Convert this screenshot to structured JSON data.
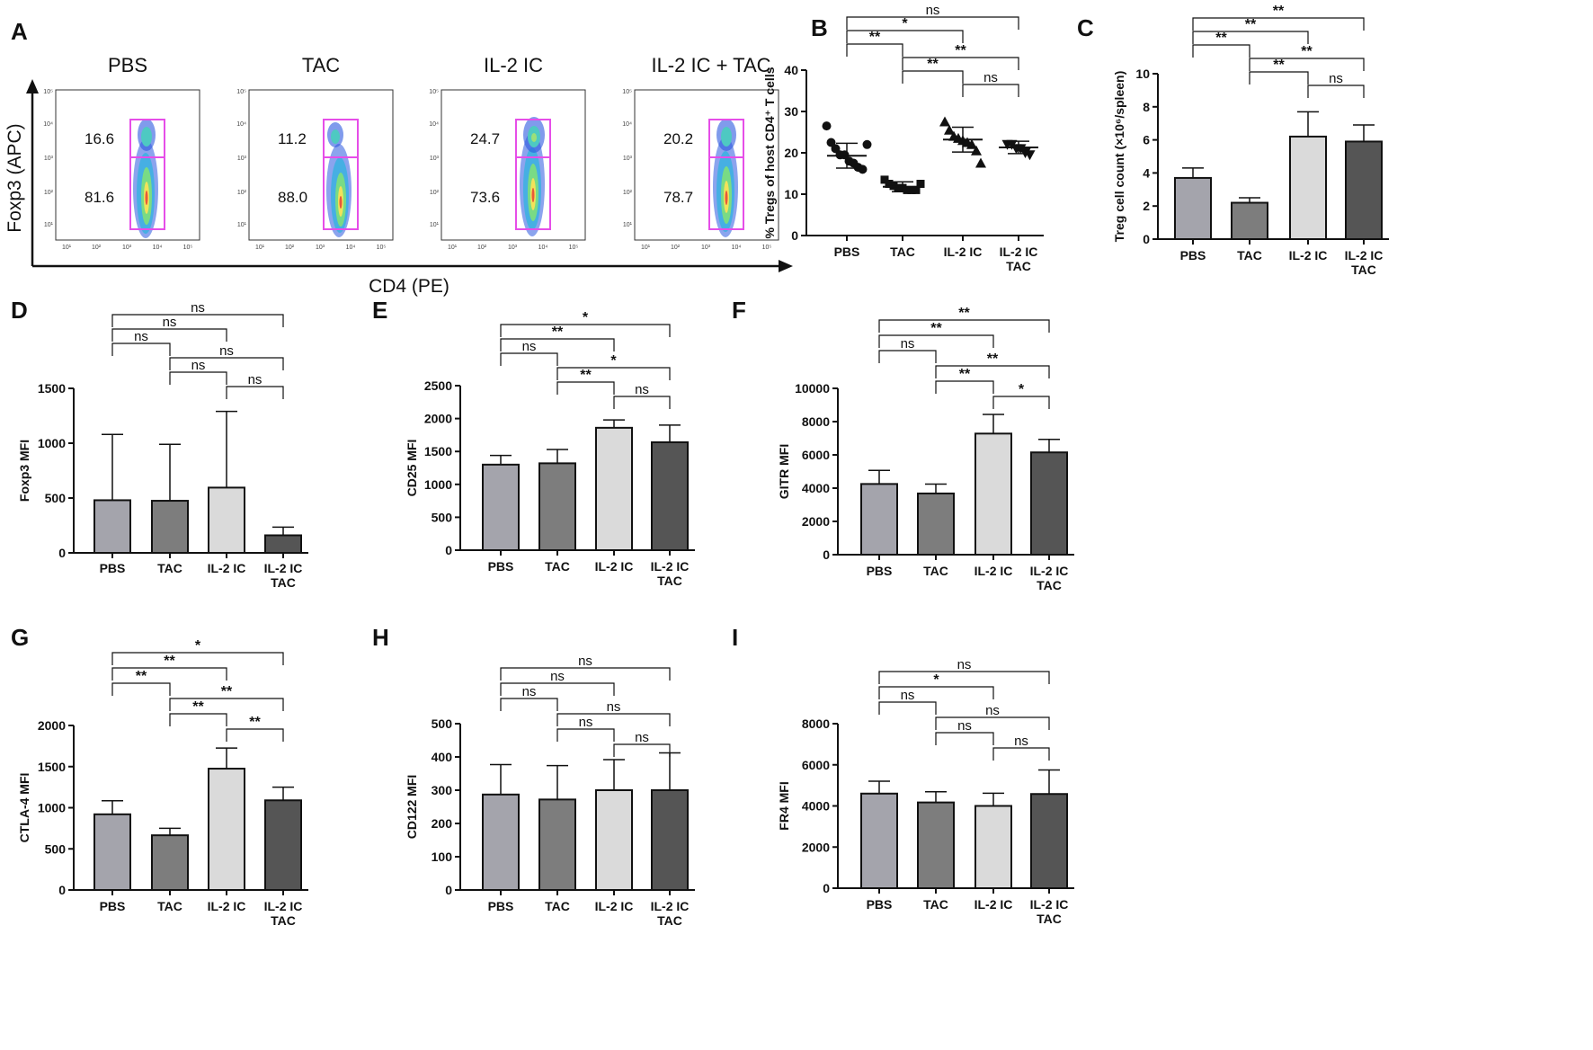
{
  "colors": {
    "PBS": "#a4a4ac",
    "TAC": "#7d7d7d",
    "IL2IC": "#dadada",
    "IL2IC_TAC": "#555555",
    "gate": "#e64ee8",
    "axis": "#111111"
  },
  "panel_a": {
    "letter": "A",
    "y_axis_label": "Foxp3 (APC)",
    "x_axis_label": "CD4 (PE)",
    "y_ticks": [
      "10⁵",
      "10⁴",
      "10³",
      "10²",
      "10¹"
    ],
    "x_ticks": [
      "10¹",
      "10²",
      "10³",
      "10⁴",
      "10⁵"
    ],
    "plots": [
      {
        "title": "PBS",
        "upper_pct": "16.6",
        "lower_pct": "81.6"
      },
      {
        "title": "TAC",
        "upper_pct": "11.2",
        "lower_pct": "88.0"
      },
      {
        "title": "IL-2 IC",
        "upper_pct": "24.7",
        "lower_pct": "73.6"
      },
      {
        "title": "IL-2 IC + TAC",
        "upper_pct": "20.2",
        "lower_pct": "78.7"
      }
    ]
  },
  "chart_data": [
    {
      "panel": "B",
      "type": "scatter",
      "ylabel": "% Tregs of host CD4⁺ T cells",
      "ylim": [
        0,
        40
      ],
      "yticks": [
        0,
        10,
        20,
        30,
        40
      ],
      "categories": [
        "PBS",
        "TAC",
        "IL-2 IC",
        "IL-2 IC TAC"
      ],
      "cat_lines": [
        [
          "PBS"
        ],
        [
          "TAC"
        ],
        [
          "IL-2 IC"
        ],
        [
          "IL-2 IC",
          "TAC"
        ]
      ],
      "markers": [
        "circle",
        "square",
        "triangle",
        "triangle-down"
      ],
      "means": [
        19.3,
        11.8,
        23.2,
        21.3
      ],
      "sd": [
        3.0,
        1.2,
        3.0,
        1.5
      ],
      "points": [
        [
          26.5,
          22.5,
          21.0,
          19.5,
          19.5,
          18.0,
          17.5,
          16.5,
          16.0,
          22.0
        ],
        [
          13.5,
          12.5,
          12.0,
          11.5,
          11.5,
          11.0,
          11.0,
          11.0,
          12.5
        ],
        [
          27.5,
          25.5,
          24.0,
          23.5,
          23.0,
          22.5,
          22.0,
          20.5,
          17.5
        ],
        [
          22.0,
          22.0,
          21.0,
          21.0,
          20.0,
          19.5
        ]
      ],
      "comparisons": [
        {
          "from": 0,
          "to": 1,
          "label": "**"
        },
        {
          "from": 0,
          "to": 2,
          "label": "*"
        },
        {
          "from": 0,
          "to": 3,
          "label": "ns"
        },
        {
          "from": 1,
          "to": 2,
          "label": "**"
        },
        {
          "from": 1,
          "to": 3,
          "label": "**"
        },
        {
          "from": 2,
          "to": 3,
          "label": "ns"
        }
      ]
    },
    {
      "panel": "C",
      "type": "bar",
      "ylabel": "Treg cell count (×10⁶/spleen)",
      "ylim": [
        0,
        10
      ],
      "yticks": [
        0,
        2,
        4,
        6,
        8,
        10
      ],
      "categories": [
        "PBS",
        "TAC",
        "IL-2 IC",
        "IL-2 IC TAC"
      ],
      "cat_lines": [
        [
          "PBS"
        ],
        [
          "TAC"
        ],
        [
          "IL-2 IC"
        ],
        [
          "IL-2 IC",
          "TAC"
        ]
      ],
      "values": [
        3.7,
        2.2,
        6.2,
        5.9
      ],
      "errors": [
        0.6,
        0.3,
        1.5,
        1.0
      ],
      "comparisons": [
        {
          "from": 0,
          "to": 1,
          "label": "**"
        },
        {
          "from": 0,
          "to": 2,
          "label": "**"
        },
        {
          "from": 0,
          "to": 3,
          "label": "**"
        },
        {
          "from": 1,
          "to": 2,
          "label": "**"
        },
        {
          "from": 1,
          "to": 3,
          "label": "**"
        },
        {
          "from": 2,
          "to": 3,
          "label": "ns"
        }
      ]
    },
    {
      "panel": "D",
      "type": "bar",
      "ylabel": "Foxp3 MFI",
      "ylim": [
        0,
        1500
      ],
      "yticks": [
        0,
        500,
        1000,
        1500
      ],
      "categories": [
        "PBS",
        "TAC",
        "IL-2 IC",
        "IL-2 IC TAC"
      ],
      "cat_lines": [
        [
          "PBS"
        ],
        [
          "TAC"
        ],
        [
          "IL-2 IC"
        ],
        [
          "IL-2 IC",
          "TAC"
        ]
      ],
      "values": [
        480,
        475,
        595,
        160
      ],
      "errors": [
        600,
        515,
        695,
        75
      ],
      "comparisons": [
        {
          "from": 0,
          "to": 1,
          "label": "ns"
        },
        {
          "from": 0,
          "to": 2,
          "label": "ns"
        },
        {
          "from": 0,
          "to": 3,
          "label": "ns"
        },
        {
          "from": 1,
          "to": 2,
          "label": "ns"
        },
        {
          "from": 1,
          "to": 3,
          "label": "ns"
        },
        {
          "from": 2,
          "to": 3,
          "label": "ns"
        }
      ]
    },
    {
      "panel": "E",
      "type": "bar",
      "ylabel": "CD25 MFI",
      "ylim": [
        0,
        2500
      ],
      "yticks": [
        0,
        500,
        1000,
        1500,
        2000,
        2500
      ],
      "categories": [
        "PBS",
        "TAC",
        "IL-2 IC",
        "IL-2 IC TAC"
      ],
      "cat_lines": [
        [
          "PBS"
        ],
        [
          "TAC"
        ],
        [
          "IL-2 IC"
        ],
        [
          "IL-2 IC",
          "TAC"
        ]
      ],
      "values": [
        1300,
        1320,
        1860,
        1640
      ],
      "errors": [
        140,
        210,
        120,
        260
      ],
      "comparisons": [
        {
          "from": 0,
          "to": 1,
          "label": "ns"
        },
        {
          "from": 0,
          "to": 2,
          "label": "**"
        },
        {
          "from": 0,
          "to": 3,
          "label": "*"
        },
        {
          "from": 1,
          "to": 2,
          "label": "**"
        },
        {
          "from": 1,
          "to": 3,
          "label": "*"
        },
        {
          "from": 2,
          "to": 3,
          "label": "ns"
        }
      ]
    },
    {
      "panel": "F",
      "type": "bar",
      "ylabel": "GITR MFI",
      "ylim": [
        0,
        10000
      ],
      "yticks": [
        0,
        2000,
        4000,
        6000,
        8000,
        10000
      ],
      "categories": [
        "PBS",
        "TAC",
        "IL-2 IC",
        "IL-2 IC TAC"
      ],
      "cat_lines": [
        [
          "PBS"
        ],
        [
          "TAC"
        ],
        [
          "IL-2 IC"
        ],
        [
          "IL-2 IC",
          "TAC"
        ]
      ],
      "values": [
        4250,
        3680,
        7280,
        6150
      ],
      "errors": [
        820,
        560,
        1150,
        780
      ],
      "comparisons": [
        {
          "from": 0,
          "to": 1,
          "label": "ns"
        },
        {
          "from": 0,
          "to": 2,
          "label": "**"
        },
        {
          "from": 0,
          "to": 3,
          "label": "**"
        },
        {
          "from": 1,
          "to": 2,
          "label": "**"
        },
        {
          "from": 1,
          "to": 3,
          "label": "**"
        },
        {
          "from": 2,
          "to": 3,
          "label": "*"
        }
      ]
    },
    {
      "panel": "G",
      "type": "bar",
      "ylabel": "CTLA-4 MFI",
      "ylim": [
        0,
        2000
      ],
      "yticks": [
        0,
        500,
        1000,
        1500,
        2000
      ],
      "categories": [
        "PBS",
        "TAC",
        "IL-2 IC",
        "IL-2 IC TAC"
      ],
      "cat_lines": [
        [
          "PBS"
        ],
        [
          "TAC"
        ],
        [
          "IL-2 IC"
        ],
        [
          "IL-2 IC",
          "TAC"
        ]
      ],
      "values": [
        920,
        665,
        1475,
        1090
      ],
      "errors": [
        165,
        85,
        250,
        160
      ],
      "comparisons": [
        {
          "from": 0,
          "to": 1,
          "label": "**"
        },
        {
          "from": 0,
          "to": 2,
          "label": "**"
        },
        {
          "from": 0,
          "to": 3,
          "label": "*"
        },
        {
          "from": 1,
          "to": 2,
          "label": "**"
        },
        {
          "from": 1,
          "to": 3,
          "label": "**"
        },
        {
          "from": 2,
          "to": 3,
          "label": "**"
        }
      ]
    },
    {
      "panel": "H",
      "type": "bar",
      "ylabel": "CD122 MFI",
      "ylim": [
        0,
        500
      ],
      "yticks": [
        0,
        100,
        200,
        300,
        400,
        500
      ],
      "categories": [
        "PBS",
        "TAC",
        "IL-2 IC",
        "IL-2 IC TAC"
      ],
      "cat_lines": [
        [
          "PBS"
        ],
        [
          "TAC"
        ],
        [
          "IL-2 IC"
        ],
        [
          "IL-2 IC",
          "TAC"
        ]
      ],
      "values": [
        287,
        272,
        300,
        300
      ],
      "errors": [
        90,
        102,
        92,
        112
      ],
      "comparisons": [
        {
          "from": 0,
          "to": 1,
          "label": "ns"
        },
        {
          "from": 0,
          "to": 2,
          "label": "ns"
        },
        {
          "from": 0,
          "to": 3,
          "label": "ns"
        },
        {
          "from": 1,
          "to": 2,
          "label": "ns"
        },
        {
          "from": 1,
          "to": 3,
          "label": "ns"
        },
        {
          "from": 2,
          "to": 3,
          "label": "ns"
        }
      ]
    },
    {
      "panel": "I",
      "type": "bar",
      "ylabel": "FR4 MFI",
      "ylim": [
        0,
        8000
      ],
      "yticks": [
        0,
        2000,
        4000,
        6000,
        8000
      ],
      "categories": [
        "PBS",
        "TAC",
        "IL-2 IC",
        "IL-2 IC TAC"
      ],
      "cat_lines": [
        [
          "PBS"
        ],
        [
          "TAC"
        ],
        [
          "IL-2 IC"
        ],
        [
          "IL-2 IC",
          "TAC"
        ]
      ],
      "values": [
        4600,
        4170,
        4000,
        4580
      ],
      "errors": [
        600,
        520,
        620,
        1170
      ],
      "comparisons": [
        {
          "from": 0,
          "to": 1,
          "label": "ns"
        },
        {
          "from": 0,
          "to": 2,
          "label": "*"
        },
        {
          "from": 0,
          "to": 3,
          "label": "ns"
        },
        {
          "from": 1,
          "to": 2,
          "label": "ns"
        },
        {
          "from": 1,
          "to": 3,
          "label": "ns"
        },
        {
          "from": 2,
          "to": 3,
          "label": "ns"
        }
      ]
    }
  ]
}
